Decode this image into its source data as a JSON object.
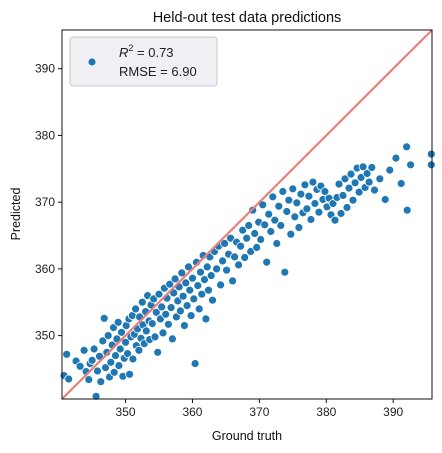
{
  "chart_data": {
    "type": "scatter",
    "title": "Held-out test data predictions",
    "xlabel": "Ground truth",
    "ylabel": "Predicted",
    "xlim": [
      340.5,
      395.8
    ],
    "ylim": [
      340.5,
      395.8
    ],
    "xticks": [
      350,
      360,
      370,
      380,
      390
    ],
    "yticks": [
      350,
      360,
      370,
      380,
      390
    ],
    "legend": {
      "position": "top-left",
      "r2_label": "R",
      "r2_sup": "2",
      "r2_value": " = 0.73",
      "rmse_text": "RMSE = 6.90"
    },
    "identity_line": {
      "from": [
        340.5,
        340.5
      ],
      "to": [
        395.8,
        395.8
      ],
      "color": "#e8807c"
    },
    "point_color": "#1f77b4",
    "grid": false,
    "points": [
      [
        340.8,
        344.0
      ],
      [
        341.2,
        347.2
      ],
      [
        341.5,
        343.5
      ],
      [
        342.6,
        346.2
      ],
      [
        343.2,
        345.4
      ],
      [
        343.8,
        347.8
      ],
      [
        344.1,
        344.6
      ],
      [
        344.5,
        343.4
      ],
      [
        344.7,
        345.8
      ],
      [
        345.0,
        346.3
      ],
      [
        345.3,
        348.0
      ],
      [
        345.6,
        340.9
      ],
      [
        345.8,
        344.7
      ],
      [
        346.1,
        346.9
      ],
      [
        346.3,
        343.1
      ],
      [
        346.6,
        349.2
      ],
      [
        346.8,
        352.6
      ],
      [
        347.0,
        345.2
      ],
      [
        347.2,
        347.5
      ],
      [
        347.4,
        350.0
      ],
      [
        347.6,
        343.8
      ],
      [
        347.8,
        346.0
      ],
      [
        348.0,
        348.6
      ],
      [
        348.2,
        351.2
      ],
      [
        348.3,
        344.5
      ],
      [
        348.5,
        347.0
      ],
      [
        348.7,
        349.5
      ],
      [
        348.9,
        352.0
      ],
      [
        349.0,
        345.5
      ],
      [
        349.2,
        348.0
      ],
      [
        349.4,
        350.5
      ],
      [
        349.6,
        343.9
      ],
      [
        349.8,
        346.6
      ],
      [
        350.0,
        349.0
      ],
      [
        350.1,
        351.5
      ],
      [
        350.3,
        347.3
      ],
      [
        350.5,
        352.5
      ],
      [
        350.6,
        344.2
      ],
      [
        350.8,
        349.8
      ],
      [
        351.0,
        353.0
      ],
      [
        351.1,
        346.5
      ],
      [
        351.3,
        350.2
      ],
      [
        351.5,
        354.0
      ],
      [
        351.6,
        348.5
      ],
      [
        351.8,
        351.0
      ],
      [
        352.0,
        347.8
      ],
      [
        352.1,
        352.8
      ],
      [
        352.3,
        349.6
      ],
      [
        352.5,
        355.0
      ],
      [
        352.6,
        351.6
      ],
      [
        352.8,
        348.8
      ],
      [
        353.0,
        353.6
      ],
      [
        353.1,
        350.7
      ],
      [
        353.3,
        356.0
      ],
      [
        353.5,
        352.2
      ],
      [
        353.6,
        349.4
      ],
      [
        353.8,
        354.6
      ],
      [
        354.0,
        351.8
      ],
      [
        354.2,
        355.5
      ],
      [
        354.4,
        349.8
      ],
      [
        354.6,
        353.5
      ],
      [
        354.8,
        347.5
      ],
      [
        355.0,
        356.2
      ],
      [
        355.2,
        352.5
      ],
      [
        355.4,
        354.3
      ],
      [
        355.6,
        350.4
      ],
      [
        355.8,
        357.1
      ],
      [
        356.0,
        353.2
      ],
      [
        356.2,
        355.6
      ],
      [
        356.4,
        351.7
      ],
      [
        356.6,
        357.7
      ],
      [
        356.8,
        354.2
      ],
      [
        357.0,
        349.5
      ],
      [
        357.2,
        356.4
      ],
      [
        357.4,
        358.5
      ],
      [
        357.6,
        352.8
      ],
      [
        357.8,
        355.2
      ],
      [
        358.0,
        357.3
      ],
      [
        358.2,
        353.7
      ],
      [
        358.4,
        359.4
      ],
      [
        358.6,
        355.9
      ],
      [
        358.8,
        351.5
      ],
      [
        359.0,
        357.9
      ],
      [
        359.2,
        354.5
      ],
      [
        359.4,
        360.3
      ],
      [
        359.6,
        356.8
      ],
      [
        359.8,
        353.0
      ],
      [
        360.0,
        358.6
      ],
      [
        360.2,
        355.5
      ],
      [
        360.4,
        345.8
      ],
      [
        360.6,
        361.0
      ],
      [
        360.8,
        357.5
      ],
      [
        361.0,
        354.0
      ],
      [
        361.2,
        359.5
      ],
      [
        361.4,
        356.2
      ],
      [
        361.6,
        362.0
      ],
      [
        361.8,
        358.4
      ],
      [
        362.0,
        352.5
      ],
      [
        362.2,
        360.3
      ],
      [
        362.4,
        356.8
      ],
      [
        362.6,
        361.8
      ],
      [
        362.8,
        359.0
      ],
      [
        363.0,
        355.3
      ],
      [
        363.3,
        362.6
      ],
      [
        363.6,
        360.0
      ],
      [
        363.9,
        363.4
      ],
      [
        364.2,
        357.6
      ],
      [
        364.5,
        361.2
      ],
      [
        364.8,
        363.8
      ],
      [
        365.1,
        359.8
      ],
      [
        365.4,
        362.2
      ],
      [
        365.7,
        364.6
      ],
      [
        366.0,
        358.2
      ],
      [
        366.3,
        361.8
      ],
      [
        366.6,
        364.0
      ],
      [
        366.9,
        360.6
      ],
      [
        367.2,
        363.4
      ],
      [
        367.5,
        365.8
      ],
      [
        367.8,
        361.7
      ],
      [
        368.1,
        364.6
      ],
      [
        368.4,
        366.5
      ],
      [
        368.7,
        362.6
      ],
      [
        369.0,
        368.8
      ],
      [
        369.3,
        365.3
      ],
      [
        369.6,
        363.2
      ],
      [
        369.9,
        367.0
      ],
      [
        370.2,
        364.4
      ],
      [
        370.5,
        369.6
      ],
      [
        370.8,
        366.6
      ],
      [
        371.1,
        361.0
      ],
      [
        371.4,
        368.2
      ],
      [
        371.7,
        365.6
      ],
      [
        372.0,
        370.8
      ],
      [
        372.3,
        367.3
      ],
      [
        372.6,
        363.8
      ],
      [
        372.9,
        369.4
      ],
      [
        373.2,
        366.5
      ],
      [
        373.5,
        371.6
      ],
      [
        373.8,
        359.5
      ],
      [
        374.1,
        368.6
      ],
      [
        374.4,
        370.3
      ],
      [
        374.7,
        365.2
      ],
      [
        375.0,
        372.0
      ],
      [
        375.3,
        367.8
      ],
      [
        375.6,
        369.9
      ],
      [
        375.9,
        366.2
      ],
      [
        376.2,
        371.2
      ],
      [
        376.5,
        368.4
      ],
      [
        376.8,
        372.6
      ],
      [
        377.1,
        369.0
      ],
      [
        377.4,
        370.9
      ],
      [
        377.7,
        367.4
      ],
      [
        378.0,
        373.0
      ],
      [
        378.3,
        369.8
      ],
      [
        378.6,
        371.9
      ],
      [
        378.9,
        368.5
      ],
      [
        379.2,
        372.4
      ],
      [
        379.5,
        370.4
      ],
      [
        379.8,
        371.6
      ],
      [
        380.1,
        369.3
      ],
      [
        380.4,
        370.6
      ],
      [
        380.7,
        368.1
      ],
      [
        381.0,
        369.8
      ],
      [
        381.3,
        367.3
      ],
      [
        381.6,
        370.7
      ],
      [
        381.9,
        372.7
      ],
      [
        382.2,
        368.3
      ],
      [
        382.5,
        371.0
      ],
      [
        382.8,
        373.5
      ],
      [
        383.1,
        369.2
      ],
      [
        383.4,
        372.1
      ],
      [
        383.7,
        374.2
      ],
      [
        384.0,
        370.3
      ],
      [
        384.3,
        372.9
      ],
      [
        384.6,
        375.1
      ],
      [
        384.9,
        371.5
      ],
      [
        385.2,
        373.7
      ],
      [
        385.5,
        375.3
      ],
      [
        385.8,
        372.2
      ],
      [
        386.1,
        374.3
      ],
      [
        386.4,
        373.0
      ],
      [
        386.8,
        375.2
      ],
      [
        387.2,
        371.8
      ],
      [
        388.0,
        373.5
      ],
      [
        388.8,
        370.4
      ],
      [
        389.5,
        374.8
      ],
      [
        390.4,
        376.6
      ],
      [
        391.2,
        372.8
      ],
      [
        392.0,
        378.3
      ],
      [
        392.1,
        368.8
      ],
      [
        392.6,
        375.6
      ],
      [
        395.7,
        377.2
      ],
      [
        395.7,
        375.6
      ]
    ]
  }
}
